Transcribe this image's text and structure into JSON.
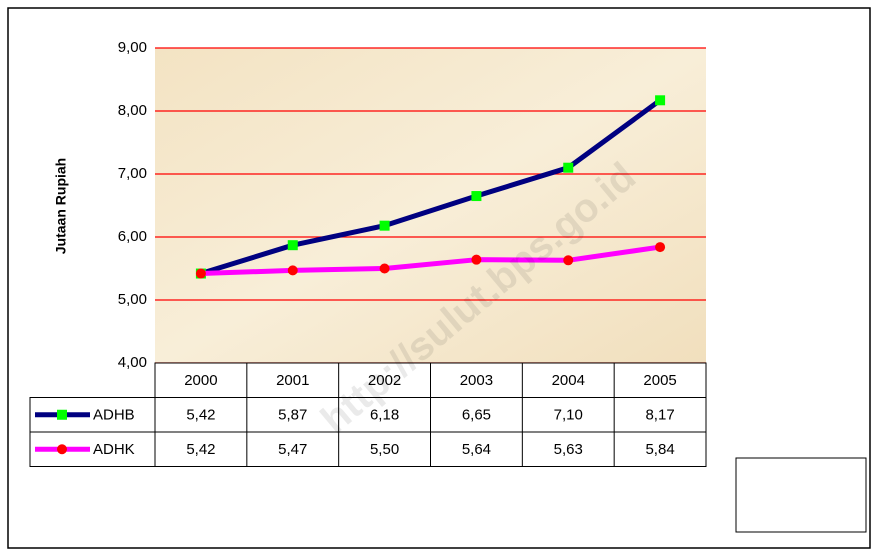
{
  "chart_data": {
    "type": "line",
    "y_label": "Jutaan Rupiah",
    "watermark": "http://sulut.bps.go.id",
    "categories": [
      "2000",
      "2001",
      "2002",
      "2003",
      "2004",
      "2005"
    ],
    "series": [
      {
        "name": "ADHB",
        "color": "#000080",
        "marker": "square",
        "marker_color": "#00ff00",
        "values": [
          5.42,
          5.87,
          6.18,
          6.65,
          7.1,
          8.17
        ],
        "value_labels": [
          "5,42",
          "5,87",
          "6,18",
          "6,65",
          "7,10",
          "8,17"
        ]
      },
      {
        "name": "ADHK",
        "color": "#ff00ff",
        "marker": "circle",
        "marker_color": "#ff0000",
        "values": [
          5.42,
          5.47,
          5.5,
          5.64,
          5.63,
          5.84
        ],
        "value_labels": [
          "5,42",
          "5,47",
          "5,50",
          "5,64",
          "5,63",
          "5,84"
        ]
      }
    ],
    "ylim": [
      4,
      9
    ],
    "yticks": [
      {
        "value": 4,
        "label": "4,00"
      },
      {
        "value": 5,
        "label": "5,00"
      },
      {
        "value": 6,
        "label": "6,00"
      },
      {
        "value": 7,
        "label": "7,00"
      },
      {
        "value": 8,
        "label": "8,00"
      },
      {
        "value": 9,
        "label": "9,00"
      }
    ],
    "grid": true,
    "grid_color": "#ff0000",
    "legend": "right"
  }
}
